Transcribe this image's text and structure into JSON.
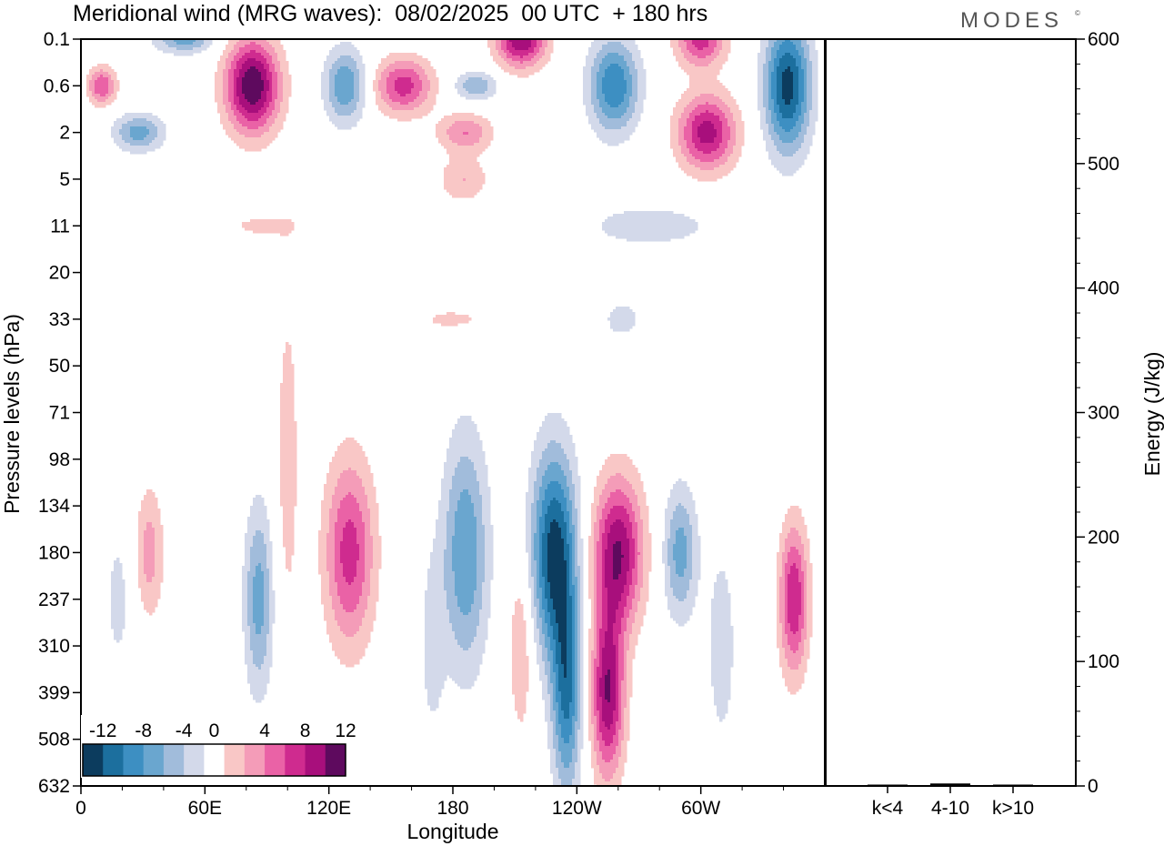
{
  "header": {
    "title": "Meridional wind (MRG waves):  08/02/2025  00 UTC  + 180 hrs",
    "brand": "MODES",
    "brand_mark": "©"
  },
  "colors": {
    "negative": [
      "#0c3c5e",
      "#1c6f9e",
      "#3d8fc2",
      "#6aa6cf",
      "#a1bcdb",
      "#d3d9ea"
    ],
    "zero": "#ffffff",
    "positive": [
      "#f9c7c6",
      "#f49cb8",
      "#ea62a6",
      "#cf2b8f",
      "#a80f7c",
      "#5e0a5e"
    ],
    "bar": "#000000"
  },
  "chart_data": [
    {
      "type": "heatmap",
      "title": "Meridional wind (MRG waves):  08/02/2025  00 UTC  + 180 hrs",
      "xlabel": "Longitude",
      "ylabel": "Pressure levels (hPa)",
      "x_ticks": [
        "0",
        "60E",
        "120E",
        "180",
        "120W",
        "60W"
      ],
      "x_tick_degrees": [
        0,
        60,
        120,
        180,
        240,
        300
      ],
      "x_range": [
        0,
        360
      ],
      "y_ticks": [
        "0.1",
        "0.6",
        "2",
        "5",
        "11",
        "20",
        "33",
        "50",
        "71",
        "98",
        "134",
        "180",
        "237",
        "310",
        "399",
        "508",
        "632"
      ],
      "y_order": "top-to-bottom",
      "colorbar": {
        "labels": [
          "-12",
          "-8",
          "-4",
          "0",
          "4",
          "8",
          "12"
        ],
        "levels": [
          -14,
          -12,
          -10,
          -8,
          -6,
          -4,
          -2,
          2,
          4,
          6,
          8,
          10,
          12,
          14
        ],
        "placement": "bottom-left inside plot"
      },
      "features": [
        {
          "lon": 83,
          "level": "0.6",
          "value": 14,
          "lon_halfwidth": 13,
          "level_halfspan": 1.0
        },
        {
          "lon": 10,
          "level": "0.6",
          "value": 8,
          "lon_halfwidth": 7,
          "level_halfspan": 0.4
        },
        {
          "lon": 50,
          "level": "0.1",
          "value": -7,
          "lon_halfwidth": 14,
          "level_halfspan": 0.3
        },
        {
          "lon": 28,
          "level": "2",
          "value": -7,
          "lon_halfwidth": 12,
          "level_halfspan": 0.4
        },
        {
          "lon": 128,
          "level": "0.6",
          "value": -8,
          "lon_halfwidth": 10,
          "level_halfspan": 0.8
        },
        {
          "lon": 156,
          "level": "0.6",
          "value": 9,
          "lon_halfwidth": 14,
          "level_halfspan": 0.6
        },
        {
          "lon": 191,
          "level": "0.6",
          "value": -6,
          "lon_halfwidth": 10,
          "level_halfspan": 0.3
        },
        {
          "lon": 186,
          "level": "2",
          "value": 6,
          "lon_halfwidth": 13,
          "level_halfspan": 0.4
        },
        {
          "lon": 213,
          "level": "0.1",
          "value": 12,
          "lon_halfwidth": 12,
          "level_halfspan": 0.6
        },
        {
          "lon": 258,
          "level": "0.6",
          "value": -10,
          "lon_halfwidth": 12,
          "level_halfspan": 1.0
        },
        {
          "lon": 300,
          "level": "0.1",
          "value": 9,
          "lon_halfwidth": 12,
          "level_halfspan": 0.6
        },
        {
          "lon": 303,
          "level": "2",
          "value": 11,
          "lon_halfwidth": 14,
          "level_halfspan": 0.8
        },
        {
          "lon": 342,
          "level": "0.6",
          "value": -13,
          "lon_halfwidth": 11,
          "level_halfspan": 1.4
        },
        {
          "lon": 185,
          "level": "5",
          "value": 4,
          "lon_halfwidth": 12,
          "level_halfspan": 0.5
        },
        {
          "lon": 275,
          "level": "11",
          "value": -4,
          "lon_halfwidth": 28,
          "level_halfspan": 0.4
        },
        {
          "lon": 88,
          "level": "11",
          "value": 2.5,
          "lon_halfwidth": 22,
          "level_halfspan": 0.3
        },
        {
          "lon": 180,
          "level": "33",
          "value": 2.5,
          "lon_halfwidth": 22,
          "level_halfspan": 0.3
        },
        {
          "lon": 262,
          "level": "33",
          "value": -2.5,
          "lon_halfwidth": 14,
          "level_halfspan": 0.6
        },
        {
          "lon": 100,
          "level": "98",
          "value": 3,
          "lon_halfwidth": 6,
          "level_halfspan": 4.0
        },
        {
          "lon": 130,
          "level": "180",
          "value": 9,
          "lon_halfwidth": 12,
          "level_halfspan": 2.0
        },
        {
          "lon": 186,
          "level": "180",
          "value": -8,
          "lon_halfwidth": 11,
          "level_halfspan": 2.5
        },
        {
          "lon": 229,
          "level": "180",
          "value": -13,
          "lon_halfwidth": 11,
          "level_halfspan": 2.2
        },
        {
          "lon": 260,
          "level": "180",
          "value": 12,
          "lon_halfwidth": 12,
          "level_halfspan": 1.6
        },
        {
          "lon": 290,
          "level": "180",
          "value": -7,
          "lon_halfwidth": 8,
          "level_halfspan": 1.4
        },
        {
          "lon": 86,
          "level": "237",
          "value": -7,
          "lon_halfwidth": 7,
          "level_halfspan": 2.0
        },
        {
          "lon": 33,
          "level": "180",
          "value": 5,
          "lon_halfwidth": 7,
          "level_halfspan": 1.4
        },
        {
          "lon": 345,
          "level": "237",
          "value": 10,
          "lon_halfwidth": 7,
          "level_halfspan": 1.6
        },
        {
          "lon": 255,
          "level": "399",
          "value": 12,
          "lon_halfwidth": 8,
          "level_halfspan": 1.8
        },
        {
          "lon": 235,
          "level": "399",
          "value": -10,
          "lon_halfwidth": 7,
          "level_halfspan": 2.2
        },
        {
          "lon": 18,
          "level": "237",
          "value": -2.5,
          "lon_halfwidth": 8,
          "level_halfspan": 2.0
        },
        {
          "lon": 310,
          "level": "310",
          "value": -3,
          "lon_halfwidth": 8,
          "level_halfspan": 2.5
        },
        {
          "lon": 213,
          "level": "310",
          "value": 4,
          "lon_halfwidth": 6,
          "level_halfspan": 2.0
        },
        {
          "lon": 170,
          "level": "310",
          "value": -3,
          "lon_halfwidth": 6,
          "level_halfspan": 2.0
        }
      ]
    },
    {
      "type": "bar",
      "categories": [
        "k<4",
        "4-10",
        "k>10"
      ],
      "values": [
        1,
        2,
        1
      ],
      "ylabel": "Energy (J/kg)",
      "ylim": [
        0,
        600
      ],
      "y_ticks": [
        0,
        100,
        200,
        300,
        400,
        500,
        600
      ]
    }
  ]
}
